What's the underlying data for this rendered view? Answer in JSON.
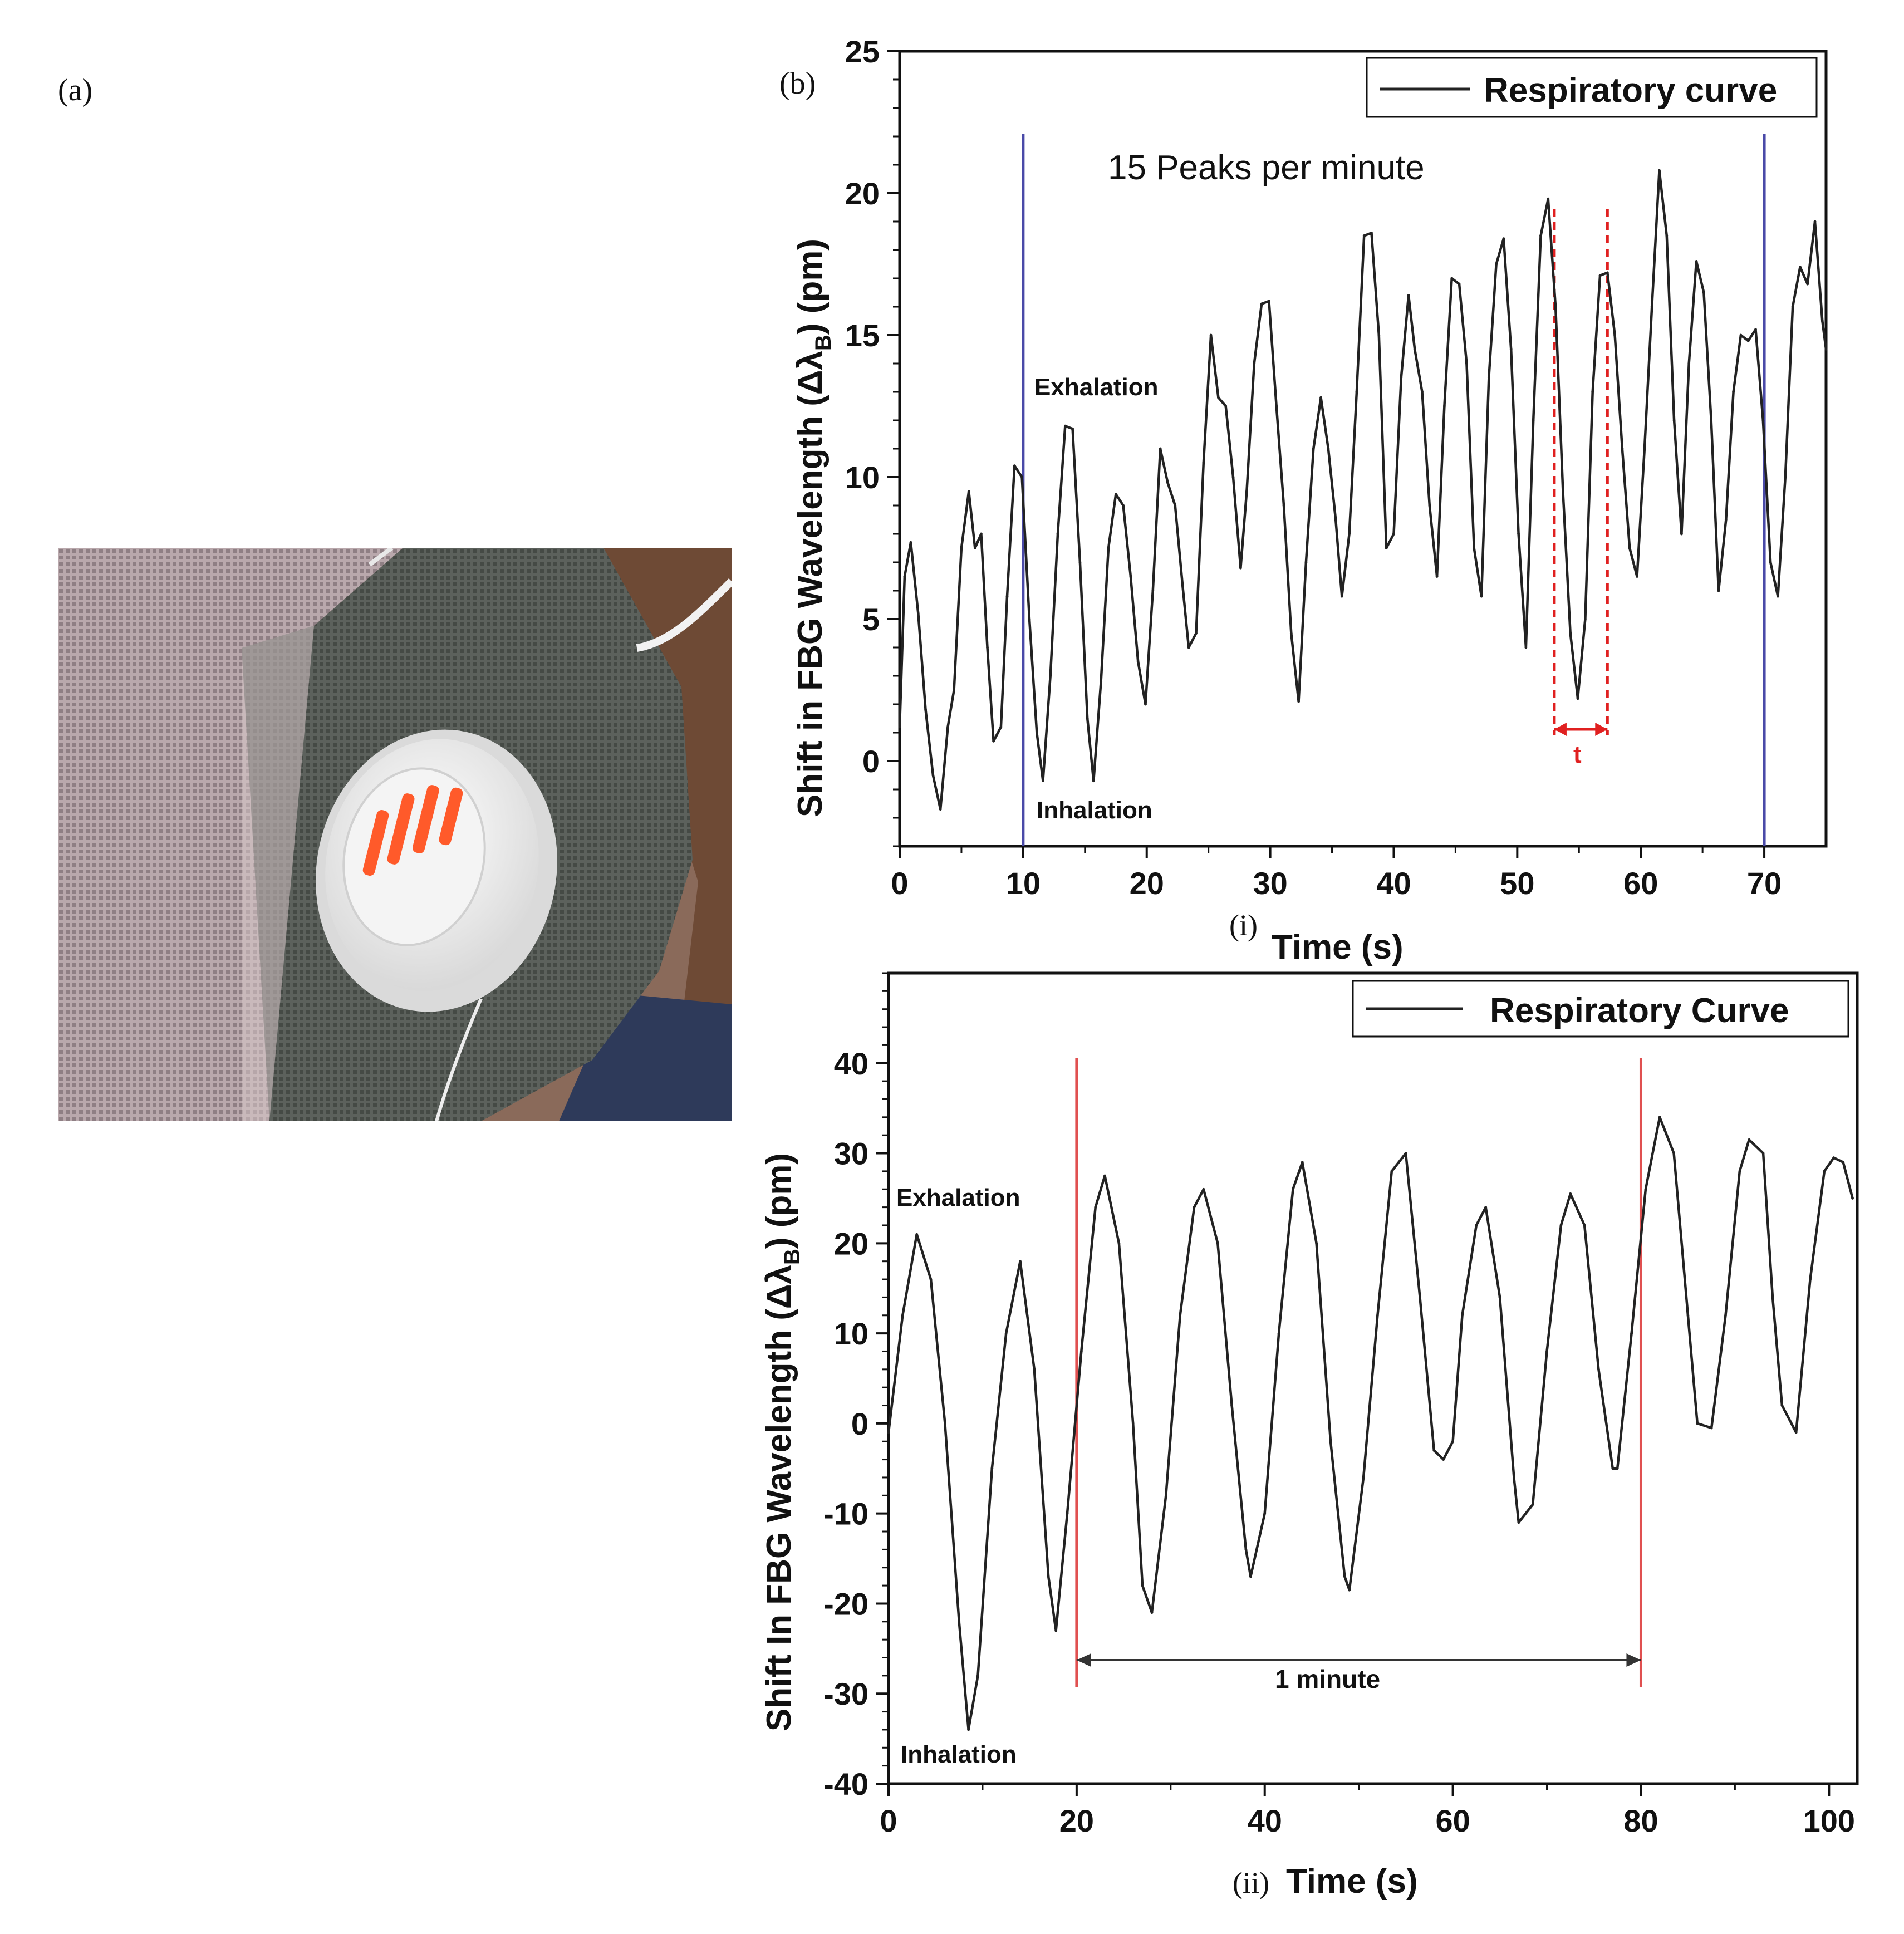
{
  "figure": {
    "panel_a_label": "(a)",
    "panel_b_label": "(b)",
    "photo_description_icon": "face-mask-with-valve-photo"
  },
  "chart_data": [
    {
      "id": "chart-i",
      "type": "line",
      "sublabel": "(i)",
      "xlabel": "Time (s)",
      "ylabel_main": "Shift in FBG Wavelength (Δλ",
      "ylabel_sub": "B",
      "ylabel_unit": ") (pm)",
      "xlim": [
        0,
        75
      ],
      "ylim": [
        -3,
        25
      ],
      "xticks": [
        0,
        10,
        20,
        30,
        40,
        50,
        60,
        70
      ],
      "yticks": [
        0,
        5,
        10,
        15,
        20,
        25
      ],
      "legend": {
        "label": "Respiratory curve",
        "placement": "top-right"
      },
      "annotations": {
        "peaks_text": "15 Peaks per minute",
        "exhalation": "Exhalation",
        "inhalation": "Inhalation",
        "period_label": "t"
      },
      "vlines": {
        "x": [
          10,
          70
        ],
        "color": "#4a4aa8"
      },
      "period_markers": {
        "x": [
          53,
          57.3
        ],
        "color": "#e02020"
      },
      "series": [
        {
          "color": "#222222",
          "x": [
            0,
            0.4,
            0.9,
            1.5,
            2.1,
            2.7,
            3.3,
            3.9,
            4.4,
            5.0,
            5.6,
            6.1,
            6.6,
            7.1,
            7.6,
            8.2,
            8.7,
            9.3,
            9.9,
            10.5,
            11.1,
            11.6,
            12.2,
            12.8,
            13.4,
            14.0,
            14.6,
            15.2,
            15.7,
            16.3,
            16.9,
            17.5,
            18.1,
            18.7,
            19.3,
            19.9,
            20.5,
            21.1,
            21.7,
            22.3,
            22.9,
            23.4,
            24.0,
            24.6,
            25.2,
            25.8,
            26.4,
            27.0,
            27.6,
            28.1,
            28.7,
            29.3,
            29.9,
            30.5,
            31.1,
            31.7,
            32.3,
            32.9,
            33.5,
            34.1,
            34.7,
            35.3,
            35.8,
            36.4,
            37.0,
            37.6,
            38.2,
            38.8,
            39.4,
            40.0,
            40.6,
            41.2,
            41.7,
            42.3,
            42.9,
            43.5,
            44.1,
            44.7,
            45.3,
            45.9,
            46.5,
            47.1,
            47.7,
            48.3,
            48.9,
            49.5,
            50.1,
            50.7,
            51.3,
            51.9,
            52.5,
            53.1,
            53.7,
            54.3,
            54.9,
            55.5,
            56.1,
            56.7,
            57.3,
            57.9,
            58.5,
            59.1,
            59.7,
            60.3,
            60.9,
            61.5,
            62.1,
            62.7,
            63.3,
            63.9,
            64.5,
            65.1,
            65.7,
            66.3,
            66.9,
            67.5,
            68.1,
            68.7,
            69.3,
            69.9,
            70.5,
            71.1,
            71.7,
            72.3,
            72.9,
            73.5,
            74.1,
            74.7,
            75.0
          ],
          "y": [
            1.2,
            6.5,
            7.7,
            5.2,
            1.8,
            -0.5,
            -1.7,
            1.2,
            2.5,
            7.5,
            9.5,
            7.5,
            8.0,
            4.0,
            0.7,
            1.2,
            5.8,
            10.4,
            10.0,
            5.0,
            1.0,
            -0.7,
            3.0,
            8.0,
            11.8,
            11.7,
            7.0,
            1.5,
            -0.7,
            2.8,
            7.5,
            9.4,
            9.0,
            6.5,
            3.5,
            2.0,
            6.0,
            11.0,
            9.8,
            9.0,
            6.2,
            4.0,
            4.5,
            10.5,
            15.0,
            12.8,
            12.5,
            10.0,
            6.8,
            9.5,
            14.0,
            16.1,
            16.2,
            12.5,
            9.0,
            4.5,
            2.1,
            7.0,
            11.0,
            12.8,
            11.0,
            8.5,
            5.8,
            8.0,
            13.0,
            18.5,
            18.6,
            15.0,
            7.5,
            8.0,
            13.5,
            16.4,
            14.5,
            13.0,
            9.0,
            6.5,
            12.5,
            17.0,
            16.8,
            14.0,
            7.5,
            5.8,
            13.5,
            17.5,
            18.4,
            14.5,
            8.0,
            4.0,
            12.0,
            18.5,
            19.8,
            16.0,
            9.5,
            4.5,
            2.2,
            5.0,
            13.0,
            17.1,
            17.2,
            15.0,
            11.0,
            7.5,
            6.5,
            11.0,
            16.0,
            20.8,
            18.5,
            12.0,
            8.0,
            14.0,
            17.6,
            16.5,
            12.0,
            6.0,
            8.5,
            13.0,
            15.0,
            14.8,
            15.2,
            12.0,
            7.0,
            5.8,
            10.0,
            16.0,
            17.4,
            16.8,
            19.0,
            15.5,
            14.5
          ]
        }
      ]
    },
    {
      "id": "chart-ii",
      "type": "line",
      "sublabel": "(ii)",
      "xlabel": "Time (s)",
      "ylabel_main": "Shift In FBG Wavelength (Δλ",
      "ylabel_sub": "B",
      "ylabel_unit": ") (pm)",
      "xlim": [
        0,
        103
      ],
      "ylim": [
        -40,
        50
      ],
      "xticks": [
        0,
        20,
        40,
        60,
        80,
        100
      ],
      "yticks": [
        -40,
        -30,
        -20,
        -10,
        0,
        10,
        20,
        30,
        40
      ],
      "legend": {
        "label": "Respiratory Curve",
        "placement": "top-right"
      },
      "annotations": {
        "exhalation": "Exhalation",
        "inhalation": "Inhalation",
        "interval_label": "1 minute"
      },
      "vlines": {
        "x": [
          20,
          80
        ],
        "color": "#e05050"
      },
      "series": [
        {
          "color": "#222222",
          "x": [
            0,
            1.5,
            3.0,
            4.5,
            6.0,
            7.5,
            8.5,
            9.5,
            11.0,
            12.5,
            14.0,
            15.5,
            17.0,
            17.8,
            19.0,
            20.5,
            22.0,
            23.0,
            24.5,
            26.0,
            27.0,
            28.0,
            29.5,
            31.0,
            32.5,
            33.5,
            35.0,
            36.5,
            38.0,
            38.5,
            40.0,
            41.5,
            43.0,
            44.0,
            45.5,
            47.0,
            48.5,
            49.0,
            50.5,
            52.0,
            53.5,
            55.0,
            56.5,
            58.0,
            59.0,
            60.0,
            61.0,
            62.5,
            63.5,
            65.0,
            66.5,
            67.0,
            68.5,
            70.0,
            71.5,
            72.5,
            74.0,
            75.5,
            77.0,
            77.5,
            79.0,
            80.5,
            82.0,
            83.5,
            85.0,
            86.0,
            87.5,
            89.0,
            90.5,
            91.5,
            93.0,
            94.0,
            95.0,
            96.5,
            98.0,
            99.5,
            100.5,
            101.5,
            102.5
          ],
          "y": [
            -1,
            12,
            21,
            16,
            0,
            -22,
            -34,
            -28,
            -5,
            10,
            18,
            6,
            -17,
            -23,
            -10,
            8,
            24,
            27.5,
            20,
            0,
            -18,
            -21,
            -8,
            12,
            24,
            26,
            20,
            2,
            -14,
            -17,
            -10,
            10,
            26,
            29,
            20,
            -2,
            -17,
            -18.5,
            -6,
            12,
            28,
            30,
            14,
            -3,
            -4,
            -2,
            12,
            22,
            24,
            14,
            -6,
            -11,
            -9,
            8,
            22,
            25.5,
            22,
            6,
            -5,
            -5,
            10,
            26,
            34,
            30,
            12,
            0,
            -0.5,
            12,
            28,
            31.5,
            30,
            14,
            2,
            -1,
            16,
            28,
            29.5,
            29,
            25
          ]
        }
      ]
    }
  ]
}
